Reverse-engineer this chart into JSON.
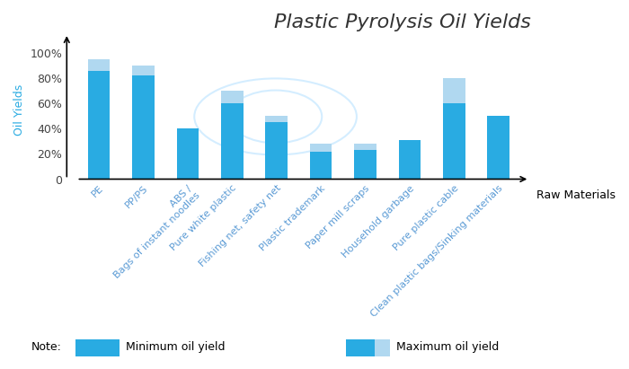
{
  "title": "Plastic Pyrolysis Oil Yields",
  "ylabel": "Oil Yields",
  "xlabel": "Raw Materials",
  "categories": [
    "PE",
    "PP/PS",
    "ABS /\nBags of instant noodles",
    "Pure white plastic",
    "Fishing net, safety net",
    "Plastic trademark",
    "Paper mill scraps",
    "Household garbage",
    "Pure plastic cable",
    "Clean plastic bags/Sinking materials"
  ],
  "min_values": [
    86,
    82,
    40,
    60,
    45,
    22,
    23,
    31,
    60,
    50
  ],
  "max_values": [
    95,
    90,
    40,
    70,
    50,
    28,
    28,
    31,
    80,
    50
  ],
  "bar_color": "#29ABE2",
  "max_color": "#B0D8F0",
  "background_color": "#FFFFFF",
  "ylim": [
    0,
    110
  ],
  "yticks": [
    0,
    20,
    40,
    60,
    80,
    100
  ],
  "ytick_labels": [
    "0",
    "20%",
    "40%",
    "60%",
    "80%",
    "100%"
  ],
  "title_fontsize": 16,
  "axis_label_fontsize": 9,
  "tick_fontsize": 9,
  "legend_note": "Note:",
  "legend_min_label": "Minimum oil yield",
  "legend_max_label": "Maximum oil yield"
}
